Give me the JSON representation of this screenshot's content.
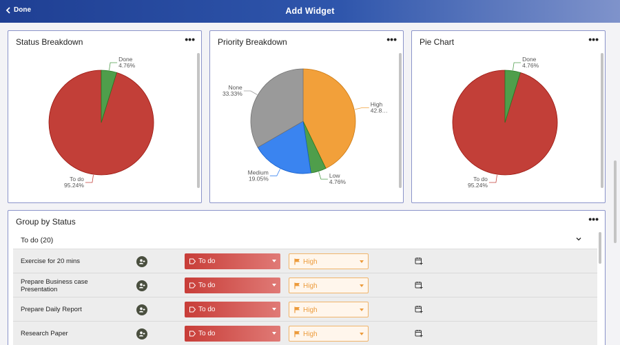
{
  "header": {
    "back_label": "Done",
    "title": "Add Widget"
  },
  "widgets": [
    {
      "title": "Status Breakdown",
      "menu": "•••",
      "chart_data": {
        "type": "pie",
        "title": "Status Breakdown",
        "slices": [
          {
            "label": "To do",
            "value": 95.24,
            "display": "95.24%",
            "color": "#c23f38"
          },
          {
            "label": "Done",
            "value": 4.76,
            "display": "4.76%",
            "color": "#4f9e4b"
          }
        ]
      }
    },
    {
      "title": "Priority Breakdown",
      "menu": "•••",
      "chart_data": {
        "type": "pie",
        "title": "Priority Breakdown",
        "slices": [
          {
            "label": "High",
            "value": 42.86,
            "display": "42.8…",
            "color": "#f2a03a"
          },
          {
            "label": "Low",
            "value": 4.76,
            "display": "4.76%",
            "color": "#4f9e4b"
          },
          {
            "label": "Medium",
            "value": 19.05,
            "display": "19.05%",
            "color": "#3a84f0"
          },
          {
            "label": "None",
            "value": 33.33,
            "display": "33.33%",
            "color": "#9a9a9a"
          }
        ]
      }
    },
    {
      "title": "Pie Chart",
      "menu": "•••",
      "chart_data": {
        "type": "pie",
        "title": "Pie Chart",
        "slices": [
          {
            "label": "To do",
            "value": 95.24,
            "display": "95.24%",
            "color": "#c23f38"
          },
          {
            "label": "Done",
            "value": 4.76,
            "display": "4.76%",
            "color": "#4f9e4b"
          }
        ]
      }
    }
  ],
  "group": {
    "title": "Group by Status",
    "menu": "•••",
    "section_label": "To do (20)",
    "rows": [
      {
        "name": "Exercise for 20 mins",
        "status": "To do",
        "priority": "High"
      },
      {
        "name": "Prepare Business case Presentation",
        "status": "To do",
        "priority": "High"
      },
      {
        "name": "Prepare Daily Report",
        "status": "To do",
        "priority": "High"
      },
      {
        "name": "Research Paper",
        "status": "To do",
        "priority": "High"
      }
    ]
  },
  "icons": {
    "back": "chevron-left-icon",
    "menu": "more-horizontal-icon",
    "collapse": "chevron-down-icon",
    "assignee": "add-assignee-icon",
    "status": "tag-icon",
    "priority": "flag-icon",
    "due": "calendar-add-icon"
  }
}
